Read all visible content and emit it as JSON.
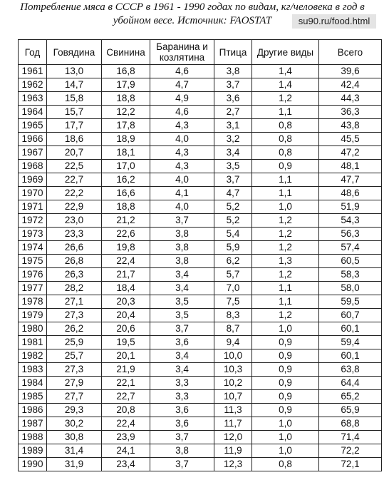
{
  "header": {
    "title": "Потребление мяса в СССР в 1961 - 1990 годах по видам, кг/человека в год в убойном весе. Источник: FAOSTAT",
    "source_badge": "su90.ru/food.html"
  },
  "table": {
    "columns": [
      "Год",
      "Говядина",
      "Свинина",
      "Баранина и козлятина",
      "Птица",
      "Другие виды",
      "Всего"
    ],
    "rows": [
      [
        "1961",
        "13,0",
        "16,8",
        "4,6",
        "3,8",
        "1,4",
        "39,6"
      ],
      [
        "1962",
        "14,7",
        "17,9",
        "4,7",
        "3,7",
        "1,4",
        "42,4"
      ],
      [
        "1963",
        "15,8",
        "18,8",
        "4,9",
        "3,6",
        "1,2",
        "44,3"
      ],
      [
        "1964",
        "15,7",
        "12,2",
        "4,6",
        "2,7",
        "1,1",
        "36,3"
      ],
      [
        "1965",
        "17,7",
        "17,8",
        "4,3",
        "3,1",
        "0,8",
        "43,8"
      ],
      [
        "1966",
        "18,6",
        "18,9",
        "4,0",
        "3,2",
        "0,8",
        "45,5"
      ],
      [
        "1967",
        "20,7",
        "18,1",
        "4,3",
        "3,4",
        "0,8",
        "47,2"
      ],
      [
        "1968",
        "22,5",
        "17,0",
        "4,3",
        "3,5",
        "0,9",
        "48,1"
      ],
      [
        "1969",
        "22,7",
        "16,2",
        "4,0",
        "3,7",
        "1,1",
        "47,7"
      ],
      [
        "1970",
        "22,2",
        "16,6",
        "4,1",
        "4,7",
        "1,1",
        "48,6"
      ],
      [
        "1971",
        "22,9",
        "18,8",
        "4,0",
        "5,2",
        "1,0",
        "51,9"
      ],
      [
        "1972",
        "23,0",
        "21,2",
        "3,7",
        "5,2",
        "1,2",
        "54,3"
      ],
      [
        "1973",
        "23,3",
        "22,6",
        "3,8",
        "5,4",
        "1,2",
        "56,3"
      ],
      [
        "1974",
        "26,6",
        "19,8",
        "3,8",
        "5,9",
        "1,2",
        "57,4"
      ],
      [
        "1975",
        "26,8",
        "22,4",
        "3,8",
        "6,2",
        "1,3",
        "60,5"
      ],
      [
        "1976",
        "26,3",
        "21,7",
        "3,4",
        "5,7",
        "1,2",
        "58,3"
      ],
      [
        "1977",
        "28,2",
        "18,4",
        "3,4",
        "7,0",
        "1,1",
        "58,0"
      ],
      [
        "1978",
        "27,1",
        "20,3",
        "3,5",
        "7,5",
        "1,1",
        "59,5"
      ],
      [
        "1979",
        "27,3",
        "20,4",
        "3,5",
        "8,3",
        "1,2",
        "60,7"
      ],
      [
        "1980",
        "26,2",
        "20,6",
        "3,7",
        "8,7",
        "1,0",
        "60,1"
      ],
      [
        "1981",
        "25,9",
        "19,5",
        "3,6",
        "9,4",
        "0,9",
        "59,4"
      ],
      [
        "1982",
        "25,7",
        "20,1",
        "3,4",
        "10,0",
        "0,9",
        "60,1"
      ],
      [
        "1983",
        "27,3",
        "21,9",
        "3,4",
        "10,3",
        "0,9",
        "63,8"
      ],
      [
        "1984",
        "27,9",
        "22,1",
        "3,3",
        "10,2",
        "0,9",
        "64,4"
      ],
      [
        "1985",
        "27,7",
        "22,7",
        "3,3",
        "10,7",
        "0,9",
        "65,2"
      ],
      [
        "1986",
        "29,3",
        "20,8",
        "3,6",
        "11,3",
        "0,9",
        "65,9"
      ],
      [
        "1987",
        "30,2",
        "22,4",
        "3,6",
        "11,7",
        "1,0",
        "68,8"
      ],
      [
        "1988",
        "30,8",
        "23,9",
        "3,7",
        "12,0",
        "1,0",
        "71,4"
      ],
      [
        "1989",
        "31,4",
        "24,1",
        "3,8",
        "11,9",
        "1,0",
        "72,2"
      ],
      [
        "1990",
        "31,9",
        "23,4",
        "3,7",
        "12,3",
        "0,8",
        "72,1"
      ]
    ]
  }
}
